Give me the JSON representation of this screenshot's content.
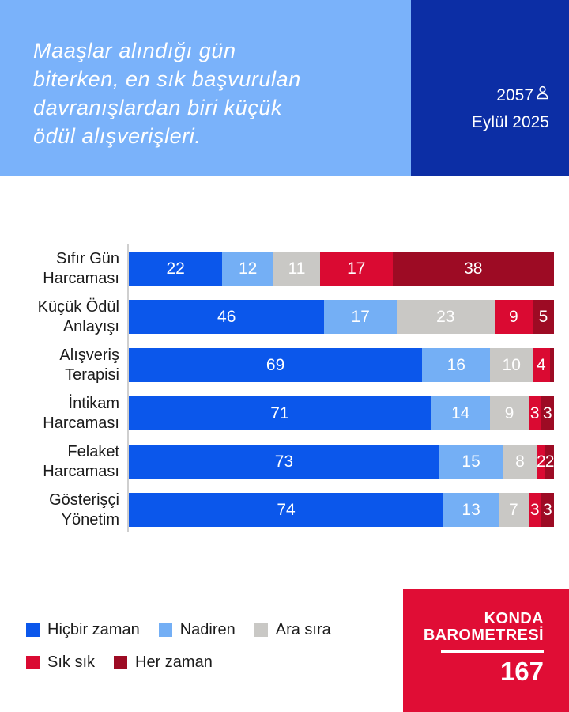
{
  "header": {
    "title": "Maaşlar alındığı gün biterken, en sık başvurulan davranışlardan biri küçük ödül alışverişleri.",
    "title_lines": [
      "Maaşlar alındığı gün",
      "biterken, en sık başvurulan",
      "davranışlardan biri küçük",
      "ödül alışverişleri."
    ],
    "sample_size": "2057",
    "date": "Eylül 2025"
  },
  "colors": {
    "hero_light_blue": "#7AB2FA",
    "hero_dark_blue": "#0C2EA5",
    "brand_red": "#E00D35",
    "axis_gray": "#CFCFCF",
    "text_dark": "#1B1B1B"
  },
  "chart_data": {
    "type": "bar",
    "orientation": "horizontal",
    "stacked": true,
    "units": "percent",
    "x_range": [
      0,
      100
    ],
    "grid": false,
    "label_min_value": 2,
    "categories": [
      "Sıfır Gün Harcaması",
      "Küçük Ödül Anlayışı",
      "Alışveriş Terapisi",
      "İntikam Harcaması",
      "Felaket Harcaması",
      "Gösterişçi Yönetim"
    ],
    "category_lines": [
      [
        "Sıfır Gün",
        "Harcaması"
      ],
      [
        "Küçük Ödül",
        "Anlayışı"
      ],
      [
        "Alışveriş",
        "Terapisi"
      ],
      [
        "İntikam",
        "Harcaması"
      ],
      [
        "Felaket",
        "Harcaması"
      ],
      [
        "Gösterişçi",
        "Yönetim"
      ]
    ],
    "series": [
      {
        "name": "Hiçbir zaman",
        "color": "#0B57EB",
        "values": [
          22,
          46,
          69,
          71,
          73,
          74
        ]
      },
      {
        "name": "Nadiren",
        "color": "#74AFF5",
        "values": [
          12,
          17,
          16,
          14,
          15,
          13
        ]
      },
      {
        "name": "Ara sıra",
        "color": "#C9C8C5",
        "values": [
          11,
          23,
          10,
          9,
          8,
          7
        ]
      },
      {
        "name": "Sık sık",
        "color": "#DA0A32",
        "values": [
          17,
          9,
          4,
          3,
          2,
          3
        ]
      },
      {
        "name": "Her zaman",
        "color": "#9D0B24",
        "values": [
          38,
          5,
          1,
          3,
          2,
          3
        ]
      }
    ]
  },
  "legend": {
    "rows": [
      [
        "Hiçbir zaman",
        "Nadiren",
        "Ara sıra"
      ],
      [
        "Sık sık",
        "Her zaman"
      ]
    ]
  },
  "footer": {
    "brand_line1": "KONDA",
    "brand_line2": "BAROMETRESİ",
    "issue": "167"
  }
}
